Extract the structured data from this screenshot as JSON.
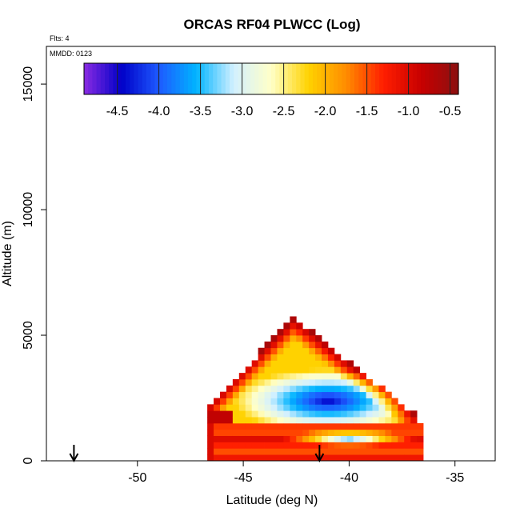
{
  "chart_data": {
    "type": "heatmap",
    "title": "ORCAS RF04 PLWCC (Log)",
    "xlabel": "Latitude (deg N)",
    "ylabel": "Altitude (m)",
    "xlim": [
      -54.3,
      -33.1
    ],
    "ylim": [
      0,
      16500
    ],
    "xticks": [
      -50,
      -45,
      -40,
      -35
    ],
    "yticks": [
      0,
      5000,
      10000,
      15000
    ],
    "note_top": "Flts: 4",
    "note_inset": "MMDD: 0123",
    "colorbar": {
      "range": [
        -4.9,
        -0.4
      ],
      "ticks": [
        -4.5,
        -4.0,
        -3.5,
        -3.0,
        -2.5,
        -2.0,
        -1.5,
        -1.0,
        -0.5
      ],
      "tick_labels": [
        "-4.5",
        "-4.0",
        "-3.5",
        "-3.0",
        "-2.5",
        "-2.0",
        "-1.5",
        "-1.0",
        "-0.5"
      ],
      "colors": [
        "#8a2be2",
        "#0000c8",
        "#1e5aff",
        "#00b4ff",
        "#d2f0ff",
        "#ffffc8",
        "#ffd200",
        "#ff8c00",
        "#ff1e00",
        "#c80000",
        "#8b1010"
      ]
    },
    "arrows_lat": [
      -53.0,
      -41.4
    ],
    "cloud_region": {
      "triangle": {
        "apex": [
          -42.6,
          5700
        ],
        "base_left": [
          -46.7,
          2200
        ],
        "base_right": [
          -36.8,
          1800
        ]
      },
      "core_min": [
        -41.0,
        2400
      ],
      "lower_band": {
        "lat_range": [
          -46.6,
          -36.4
        ],
        "alt_range": [
          0,
          1400
        ]
      },
      "band_core_min": [
        -40.0,
        900
      ]
    }
  }
}
